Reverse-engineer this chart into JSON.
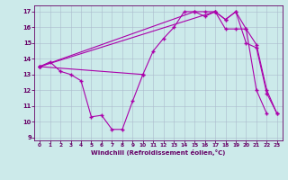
{
  "bg_color": "#cceaea",
  "line_color": "#aa00aa",
  "grid_color": "#aabbcc",
  "xlabel": "Windchill (Refroidissement éolien,°C)",
  "xlim": [
    0,
    23
  ],
  "ylim": [
    9,
    17
  ],
  "xticks": [
    0,
    1,
    2,
    3,
    4,
    5,
    6,
    7,
    8,
    9,
    10,
    11,
    12,
    13,
    14,
    15,
    16,
    17,
    18,
    19,
    20,
    21,
    22,
    23
  ],
  "yticks": [
    9,
    10,
    11,
    12,
    13,
    14,
    15,
    16,
    17
  ],
  "s1x": [
    0,
    1,
    2,
    3,
    4,
    5,
    6,
    7,
    8,
    9,
    10
  ],
  "s1y": [
    13.5,
    13.8,
    13.2,
    13.0,
    12.6,
    10.3,
    10.4,
    9.5,
    9.5,
    11.3,
    13.0
  ],
  "s2x": [
    0,
    10,
    11,
    12,
    13,
    14,
    15,
    16,
    17,
    18,
    19,
    20,
    21,
    22
  ],
  "s2y": [
    13.5,
    13.0,
    14.5,
    15.3,
    16.0,
    17.0,
    17.0,
    16.7,
    17.0,
    15.9,
    15.9,
    15.9,
    12.0,
    10.5
  ],
  "s3x": [
    0,
    15,
    16,
    17,
    18,
    19,
    20,
    21,
    22,
    23
  ],
  "s3y": [
    13.5,
    17.0,
    17.0,
    17.0,
    16.5,
    17.0,
    15.9,
    14.9,
    12.0,
    10.5
  ],
  "s4x": [
    0,
    17,
    18,
    19,
    20,
    21,
    22,
    23
  ],
  "s4y": [
    13.5,
    17.0,
    16.5,
    17.0,
    15.0,
    14.7,
    11.8,
    10.5
  ]
}
